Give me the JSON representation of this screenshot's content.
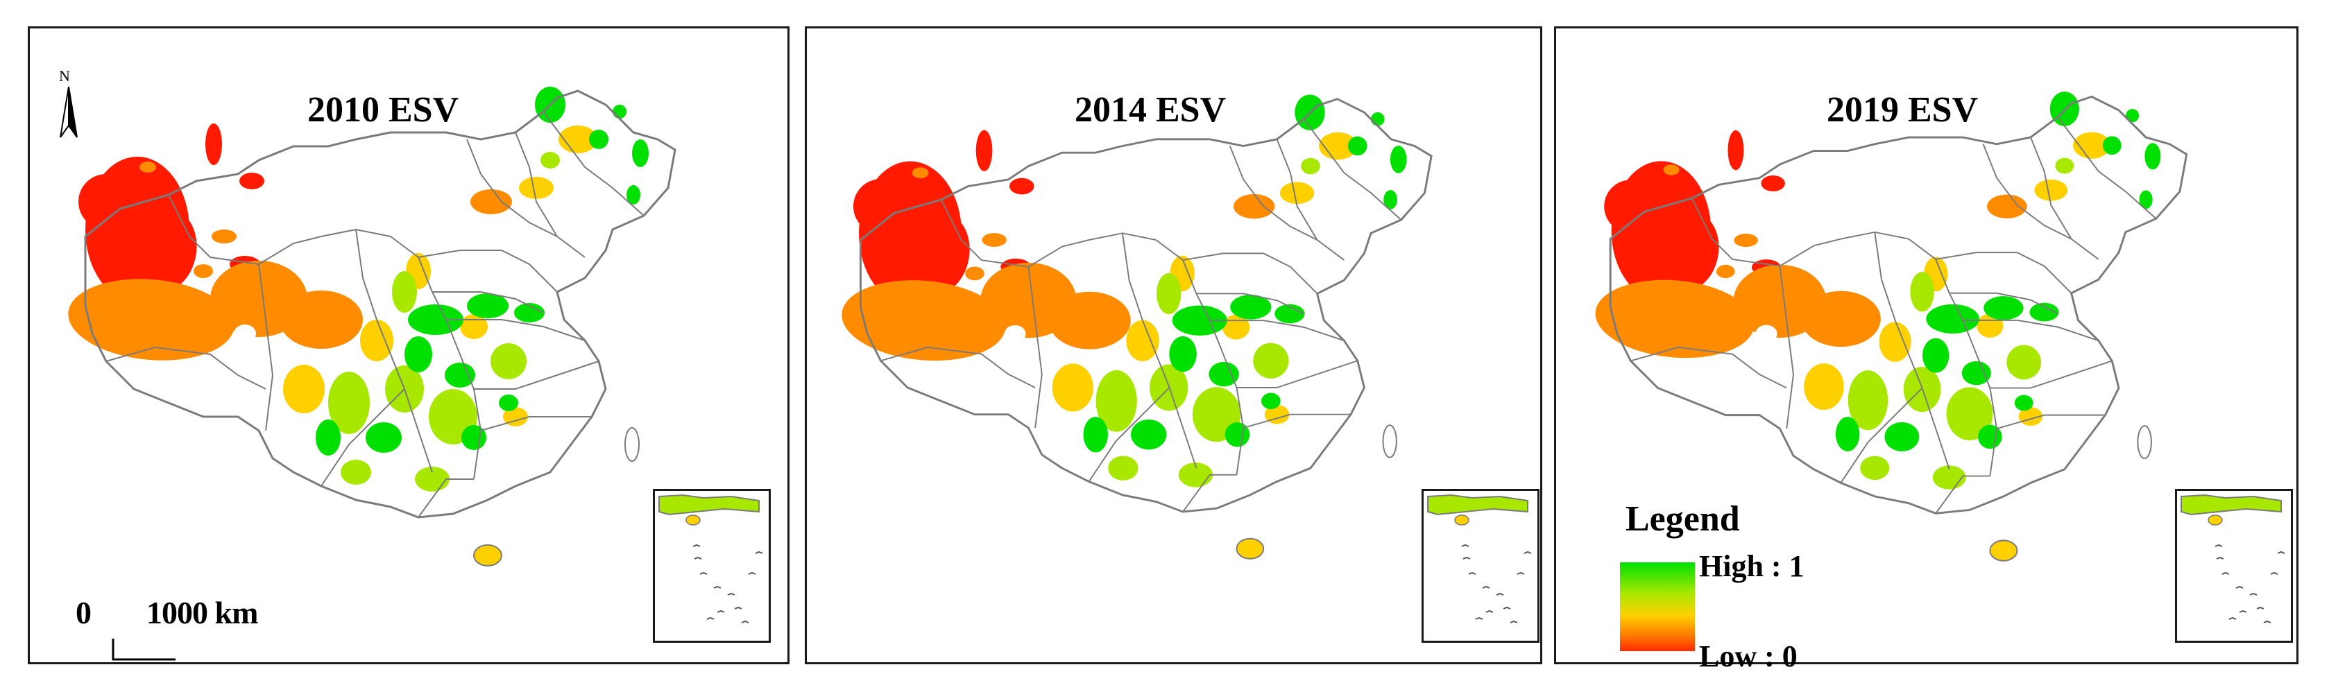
{
  "panels": [
    {
      "title": "2010 ESV"
    },
    {
      "title": "2014 ESV"
    },
    {
      "title": "2019 ESV"
    }
  ],
  "north_arrow": {
    "label": "N"
  },
  "scale_bar": {
    "zero_label": "0",
    "distance_label": "1000 km"
  },
  "legend": {
    "title": "Legend",
    "high_label": "High : 1",
    "low_label": "Low : 0"
  },
  "colors": {
    "very_low": "#ff1a00",
    "low": "#ff8c00",
    "medium": "#ffd000",
    "medium_high": "#a8e800",
    "high": "#00e000",
    "boundary": "#7a7a7a",
    "frame": "#1a1a1a"
  }
}
